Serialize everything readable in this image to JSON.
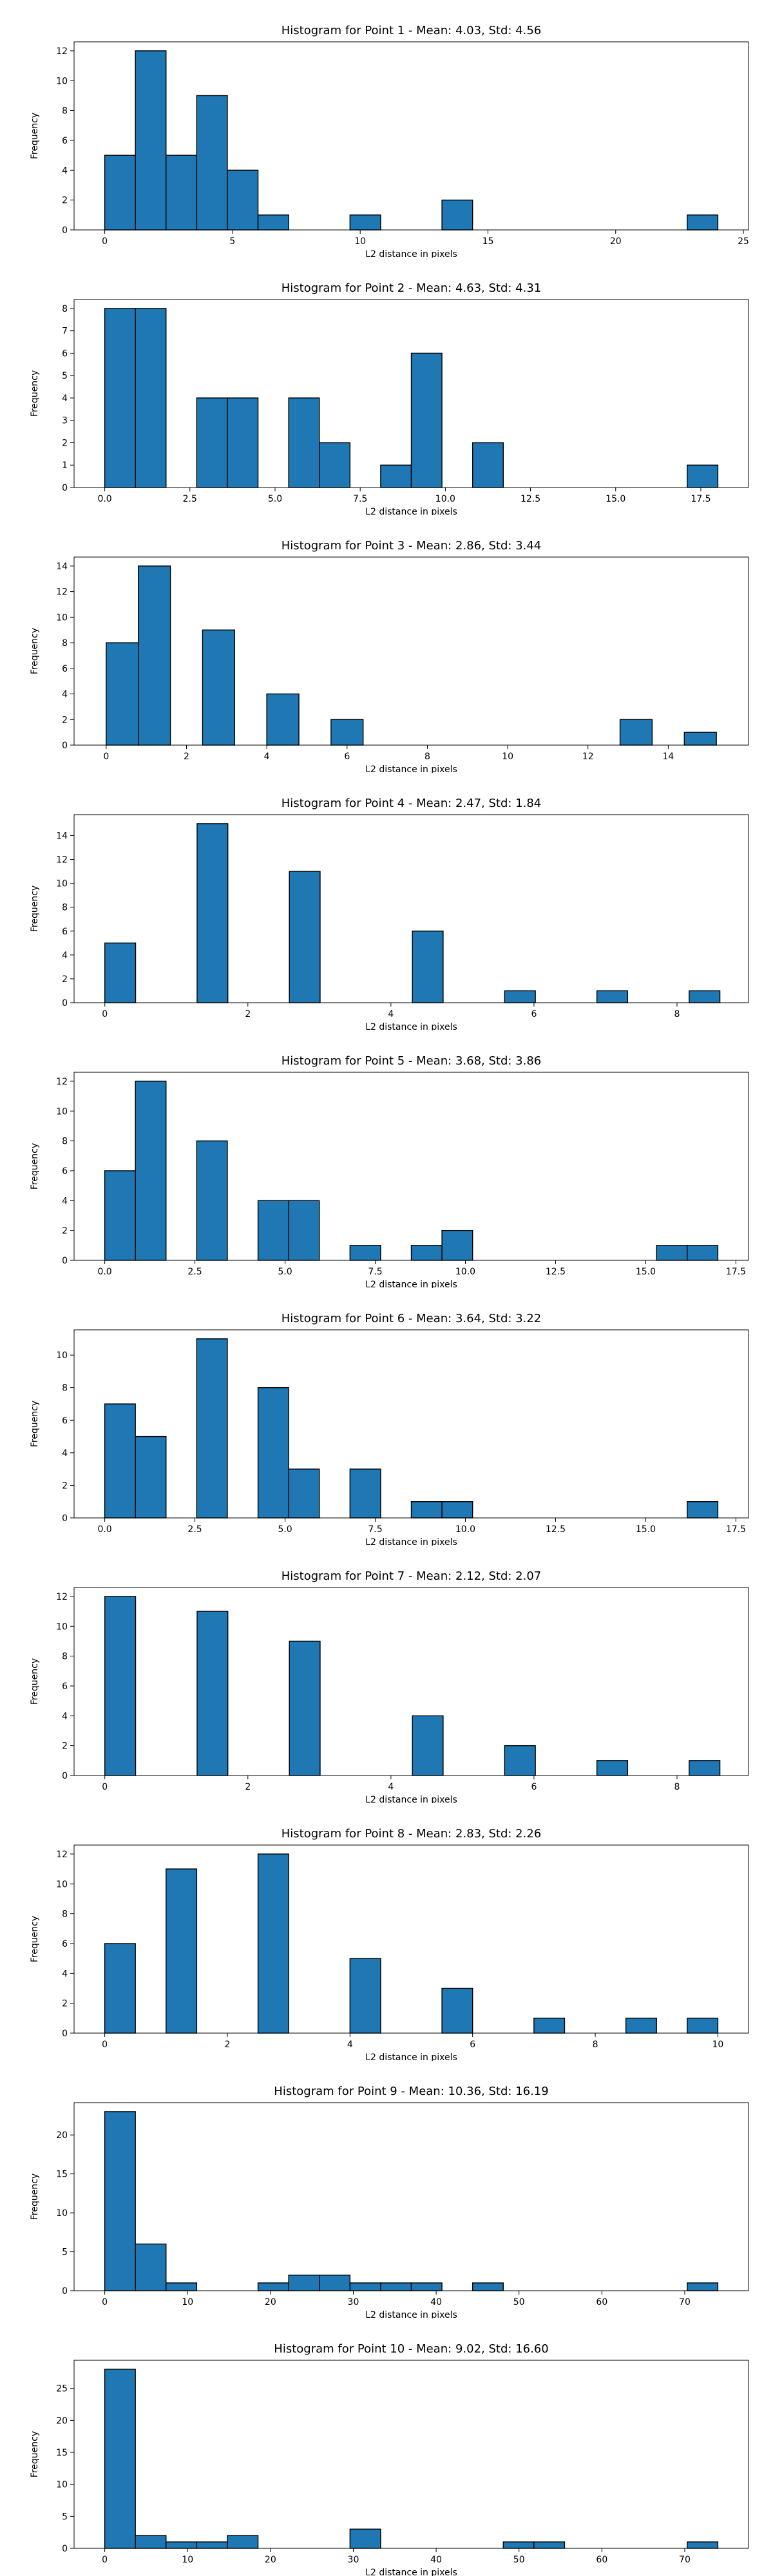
{
  "colors": {
    "bar_fill": "#1f77b4",
    "bar_edge": "#000000",
    "background": "#ffffff"
  },
  "chart_data": [
    {
      "type": "histogram",
      "title": "Histogram for Point 1 - Mean: 4.03, Std: 4.56",
      "xlabel": "L2 distance in pixels",
      "ylabel": "Frequency",
      "xlim": [
        -1.2,
        25.2
      ],
      "ylim": [
        0,
        12.6
      ],
      "xticks": [
        0,
        5,
        10,
        15,
        20,
        25
      ],
      "xtick_labels": [
        "0",
        "5",
        "10",
        "15",
        "20",
        "25"
      ],
      "yticks": [
        0,
        2,
        4,
        6,
        8,
        10,
        12
      ],
      "ytick_labels": [
        "0",
        "2",
        "4",
        "6",
        "8",
        "10",
        "12"
      ],
      "bin_edges": [
        0.0,
        1.2,
        2.4,
        3.6,
        4.8,
        6.0,
        7.2,
        8.4,
        9.6,
        10.8,
        12.0,
        13.2,
        14.4,
        15.6,
        16.8,
        18.0,
        19.2,
        20.4,
        21.6,
        22.8,
        24.0
      ],
      "counts": [
        5,
        12,
        5,
        9,
        4,
        1,
        0,
        0,
        1,
        0,
        0,
        2,
        0,
        0,
        0,
        0,
        0,
        0,
        0,
        1
      ]
    },
    {
      "type": "histogram",
      "title": "Histogram for Point 2 - Mean: 4.63, Std: 4.31",
      "xlabel": "L2 distance in pixels",
      "ylabel": "Frequency",
      "xlim": [
        -0.9,
        18.9
      ],
      "ylim": [
        0,
        8.4
      ],
      "xticks": [
        0,
        2.5,
        5,
        7.5,
        10,
        12.5,
        15,
        17.5
      ],
      "xtick_labels": [
        "0.0",
        "2.5",
        "5.0",
        "7.5",
        "10.0",
        "12.5",
        "15.0",
        "17.5"
      ],
      "yticks": [
        0,
        1,
        2,
        3,
        4,
        5,
        6,
        7,
        8
      ],
      "ytick_labels": [
        "0",
        "1",
        "2",
        "3",
        "4",
        "5",
        "6",
        "7",
        "8"
      ],
      "bin_edges": [
        0.0,
        0.9,
        1.8,
        2.7,
        3.6,
        4.5,
        5.4,
        6.3,
        7.2,
        8.1,
        9.0,
        9.9,
        10.8,
        11.7,
        12.6,
        13.5,
        14.4,
        15.3,
        16.2,
        17.1,
        18.0
      ],
      "counts": [
        8,
        8,
        0,
        4,
        4,
        0,
        4,
        2,
        0,
        1,
        6,
        0,
        2,
        0,
        0,
        0,
        0,
        0,
        0,
        1
      ]
    },
    {
      "type": "histogram",
      "title": "Histogram for Point 3 - Mean: 2.86, Std: 3.44",
      "xlabel": "L2 distance in pixels",
      "ylabel": "Frequency",
      "xlim": [
        -0.8,
        16.0
      ],
      "ylim": [
        0,
        14.7
      ],
      "xticks": [
        0,
        2,
        4,
        6,
        8,
        10,
        12,
        14
      ],
      "xtick_labels": [
        "0",
        "2",
        "4",
        "6",
        "8",
        "10",
        "12",
        "14"
      ],
      "yticks": [
        0,
        2,
        4,
        6,
        8,
        10,
        12,
        14
      ],
      "ytick_labels": [
        "0",
        "2",
        "4",
        "6",
        "8",
        "10",
        "12",
        "14"
      ],
      "bin_edges": [
        0.0,
        0.8,
        1.6,
        2.4,
        3.2,
        4.0,
        4.8,
        5.6,
        6.4,
        7.2,
        8.0,
        8.8,
        9.6,
        10.4,
        11.2,
        12.0,
        12.8,
        13.6,
        14.4,
        15.2
      ],
      "counts": [
        8,
        14,
        0,
        9,
        0,
        4,
        0,
        2,
        0,
        0,
        0,
        0,
        0,
        0,
        0,
        0,
        2,
        0,
        1
      ]
    },
    {
      "type": "histogram",
      "title": "Histogram for Point 4 - Mean: 2.47, Std: 1.84",
      "xlabel": "L2 distance in pixels",
      "ylabel": "Frequency",
      "xlim": [
        -0.43,
        9.0
      ],
      "ylim": [
        0,
        15.75
      ],
      "xticks": [
        0,
        2,
        4,
        6,
        8
      ],
      "xtick_labels": [
        "0",
        "2",
        "4",
        "6",
        "8"
      ],
      "yticks": [
        0,
        2,
        4,
        6,
        8,
        10,
        12,
        14
      ],
      "ytick_labels": [
        "0",
        "2",
        "4",
        "6",
        "8",
        "10",
        "12",
        "14"
      ],
      "bin_edges": [
        0.0,
        0.43,
        0.86,
        1.29,
        1.72,
        2.15,
        2.58,
        3.01,
        3.44,
        3.87,
        4.3,
        4.73,
        5.16,
        5.59,
        6.02,
        6.45,
        6.88,
        7.31,
        7.74,
        8.17,
        8.6
      ],
      "counts": [
        5,
        0,
        0,
        15,
        0,
        0,
        11,
        0,
        0,
        0,
        6,
        0,
        0,
        1,
        0,
        0,
        1,
        0,
        0,
        1
      ]
    },
    {
      "type": "histogram",
      "title": "Histogram for Point 5 - Mean: 3.68, Std: 3.86",
      "xlabel": "L2 distance in pixels",
      "ylabel": "Frequency",
      "xlim": [
        -0.85,
        17.85
      ],
      "ylim": [
        0,
        12.6
      ],
      "xticks": [
        0,
        2.5,
        5,
        7.5,
        10,
        12.5,
        15,
        17.5
      ],
      "xtick_labels": [
        "0.0",
        "2.5",
        "5.0",
        "7.5",
        "10.0",
        "12.5",
        "15.0",
        "17.5"
      ],
      "yticks": [
        0,
        2,
        4,
        6,
        8,
        10,
        12
      ],
      "ytick_labels": [
        "0",
        "2",
        "4",
        "6",
        "8",
        "10",
        "12"
      ],
      "bin_edges": [
        0.0,
        0.85,
        1.7,
        2.55,
        3.4,
        4.25,
        5.1,
        5.95,
        6.8,
        7.65,
        8.5,
        9.35,
        10.2,
        11.05,
        11.9,
        12.75,
        13.6,
        14.45,
        15.3,
        16.15,
        17.0
      ],
      "counts": [
        6,
        12,
        0,
        8,
        0,
        4,
        4,
        0,
        1,
        0,
        1,
        2,
        0,
        0,
        0,
        0,
        0,
        0,
        1,
        1
      ]
    },
    {
      "type": "histogram",
      "title": "Histogram for Point 6 - Mean: 3.64, Std: 3.22",
      "xlabel": "L2 distance in pixels",
      "ylabel": "Frequency",
      "xlim": [
        -0.85,
        17.85
      ],
      "ylim": [
        0,
        11.55
      ],
      "xticks": [
        0,
        2.5,
        5,
        7.5,
        10,
        12.5,
        15,
        17.5
      ],
      "xtick_labels": [
        "0.0",
        "2.5",
        "5.0",
        "7.5",
        "10.0",
        "12.5",
        "15.0",
        "17.5"
      ],
      "yticks": [
        0,
        2,
        4,
        6,
        8,
        10
      ],
      "ytick_labels": [
        "0",
        "2",
        "4",
        "6",
        "8",
        "10"
      ],
      "bin_edges": [
        0.0,
        0.85,
        1.7,
        2.55,
        3.4,
        4.25,
        5.1,
        5.95,
        6.8,
        7.65,
        8.5,
        9.35,
        10.2,
        11.05,
        11.9,
        12.75,
        13.6,
        14.45,
        15.3,
        16.15,
        17.0
      ],
      "counts": [
        7,
        5,
        0,
        11,
        0,
        8,
        3,
        0,
        3,
        0,
        1,
        1,
        0,
        0,
        0,
        0,
        0,
        0,
        0,
        1
      ]
    },
    {
      "type": "histogram",
      "title": "Histogram for Point 7 - Mean: 2.12, Std: 2.07",
      "xlabel": "L2 distance in pixels",
      "ylabel": "Frequency",
      "xlim": [
        -0.43,
        9.0
      ],
      "ylim": [
        0,
        12.6
      ],
      "xticks": [
        0,
        2,
        4,
        6,
        8
      ],
      "xtick_labels": [
        "0",
        "2",
        "4",
        "6",
        "8"
      ],
      "yticks": [
        0,
        2,
        4,
        6,
        8,
        10,
        12
      ],
      "ytick_labels": [
        "0",
        "2",
        "4",
        "6",
        "8",
        "10",
        "12"
      ],
      "bin_edges": [
        0.0,
        0.43,
        0.86,
        1.29,
        1.72,
        2.15,
        2.58,
        3.01,
        3.44,
        3.87,
        4.3,
        4.73,
        5.16,
        5.59,
        6.02,
        6.45,
        6.88,
        7.31,
        7.74,
        8.17,
        8.6
      ],
      "counts": [
        12,
        0,
        0,
        11,
        0,
        0,
        9,
        0,
        0,
        0,
        4,
        0,
        0,
        2,
        0,
        0,
        1,
        0,
        0,
        1
      ]
    },
    {
      "type": "histogram",
      "title": "Histogram for Point 8 - Mean: 2.83, Std: 2.26",
      "xlabel": "L2 distance in pixels",
      "ylabel": "Frequency",
      "xlim": [
        -0.5,
        10.5
      ],
      "ylim": [
        0,
        12.6
      ],
      "xticks": [
        0,
        2,
        4,
        6,
        8,
        10
      ],
      "xtick_labels": [
        "0",
        "2",
        "4",
        "6",
        "8",
        "10"
      ],
      "yticks": [
        0,
        2,
        4,
        6,
        8,
        10,
        12
      ],
      "ytick_labels": [
        "0",
        "2",
        "4",
        "6",
        "8",
        "10",
        "12"
      ],
      "bin_edges": [
        0.0,
        0.5,
        1.0,
        1.5,
        2.0,
        2.5,
        3.0,
        3.5,
        4.0,
        4.5,
        5.0,
        5.5,
        6.0,
        6.5,
        7.0,
        7.5,
        8.0,
        8.5,
        9.0,
        9.5,
        10.0
      ],
      "counts": [
        6,
        0,
        11,
        0,
        0,
        12,
        0,
        0,
        5,
        0,
        0,
        3,
        0,
        0,
        1,
        0,
        0,
        1,
        0,
        1
      ]
    },
    {
      "type": "histogram",
      "title": "Histogram for Point 9 - Mean: 10.36, Std: 16.19",
      "xlabel": "L2 distance in pixels",
      "ylabel": "Frequency",
      "xlim": [
        -3.7,
        77.7
      ],
      "ylim": [
        0,
        24.15
      ],
      "xticks": [
        0,
        10,
        20,
        30,
        40,
        50,
        60,
        70
      ],
      "xtick_labels": [
        "0",
        "10",
        "20",
        "30",
        "40",
        "50",
        "60",
        "70"
      ],
      "yticks": [
        0,
        5,
        10,
        15,
        20
      ],
      "ytick_labels": [
        "0",
        "5",
        "10",
        "15",
        "20"
      ],
      "bin_edges": [
        0.0,
        3.7,
        7.4,
        11.1,
        14.8,
        18.5,
        22.2,
        25.9,
        29.6,
        33.3,
        37.0,
        40.7,
        44.4,
        48.1,
        51.8,
        55.5,
        59.2,
        62.9,
        66.6,
        70.3,
        74.0
      ],
      "counts": [
        23,
        6,
        1,
        0,
        0,
        1,
        2,
        2,
        1,
        1,
        1,
        0,
        1,
        0,
        0,
        0,
        0,
        0,
        0,
        1
      ]
    },
    {
      "type": "histogram",
      "title": "Histogram for Point 10 - Mean: 9.02, Std: 16.60",
      "xlabel": "L2 distance in pixels",
      "ylabel": "Frequency",
      "xlim": [
        -3.7,
        77.7
      ],
      "ylim": [
        0,
        29.4
      ],
      "xticks": [
        0,
        10,
        20,
        30,
        40,
        50,
        60,
        70
      ],
      "xtick_labels": [
        "0",
        "10",
        "20",
        "30",
        "40",
        "50",
        "60",
        "70"
      ],
      "yticks": [
        0,
        5,
        10,
        15,
        20,
        25
      ],
      "ytick_labels": [
        "0",
        "5",
        "10",
        "15",
        "20",
        "25"
      ],
      "bin_edges": [
        0.0,
        3.7,
        7.4,
        11.1,
        14.8,
        18.5,
        22.2,
        25.9,
        29.6,
        33.3,
        37.0,
        40.7,
        44.4,
        48.1,
        51.8,
        55.5,
        59.2,
        62.9,
        66.6,
        70.3,
        74.0
      ],
      "counts": [
        28,
        2,
        1,
        1,
        2,
        0,
        0,
        0,
        3,
        0,
        0,
        0,
        0,
        1,
        1,
        0,
        0,
        0,
        0,
        1
      ]
    }
  ]
}
